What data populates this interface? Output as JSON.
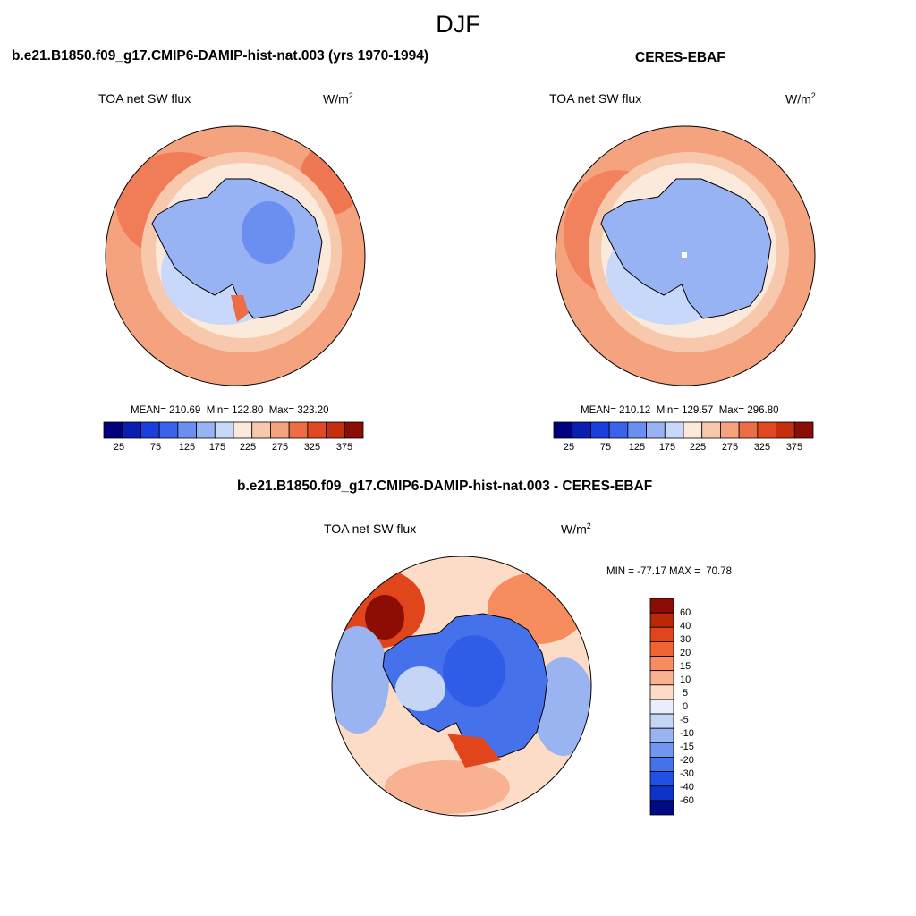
{
  "figure": {
    "title": "DJF"
  },
  "panels": [
    {
      "title": "b.e21.B1850.f09_g17.CMIP6-DAMIP-hist-nat.003 (yrs 1970-1994)",
      "variable": "TOA net SW flux",
      "units": "W/m",
      "units_exp": "2",
      "stats": "MEAN= 210.69  Min= 122.80  Max= 323.20",
      "colorbar_ticks": [
        "25",
        "75",
        "125",
        "175",
        "225",
        "275",
        "325",
        "375"
      ]
    },
    {
      "title": "CERES-EBAF",
      "variable": "TOA net SW flux",
      "units": "W/m",
      "units_exp": "2",
      "stats": "MEAN= 210.12  Min= 129.57  Max= 296.80",
      "colorbar_ticks": [
        "25",
        "75",
        "125",
        "175",
        "225",
        "275",
        "325",
        "375"
      ]
    },
    {
      "title": "b.e21.B1850.f09_g17.CMIP6-DAMIP-hist-nat.003 - CERES-EBAF",
      "variable": "TOA net SW flux",
      "units": "W/m",
      "units_exp": "2",
      "stats": "MIN = -77.17 MAX =  70.78",
      "colorbar_ticks": [
        "60",
        "40",
        "30",
        "20",
        "15",
        "10",
        "5",
        "0",
        "-5",
        "-10",
        "-15",
        "-20",
        "-30",
        "-40",
        "-60"
      ]
    }
  ],
  "colors": {
    "abs_scale": [
      "#00007f",
      "#0a1fb0",
      "#1a3fdc",
      "#3a62ea",
      "#6a8ff0",
      "#98b3f4",
      "#c8d8fa",
      "#fbe9dc",
      "#f8c8ad",
      "#f5a27e",
      "#ee6d47",
      "#e04a22",
      "#c42f10",
      "#8b0d04"
    ],
    "diff_scale": [
      "#8b0d04",
      "#bb2808",
      "#e0451b",
      "#f06434",
      "#f78c5e",
      "#f9b291",
      "#fcdcc6",
      "#e8eefb",
      "#c5d5f6",
      "#9ab4f2",
      "#7196ee",
      "#4571ea",
      "#2350e4",
      "#0f33c8",
      "#000a82"
    ]
  }
}
